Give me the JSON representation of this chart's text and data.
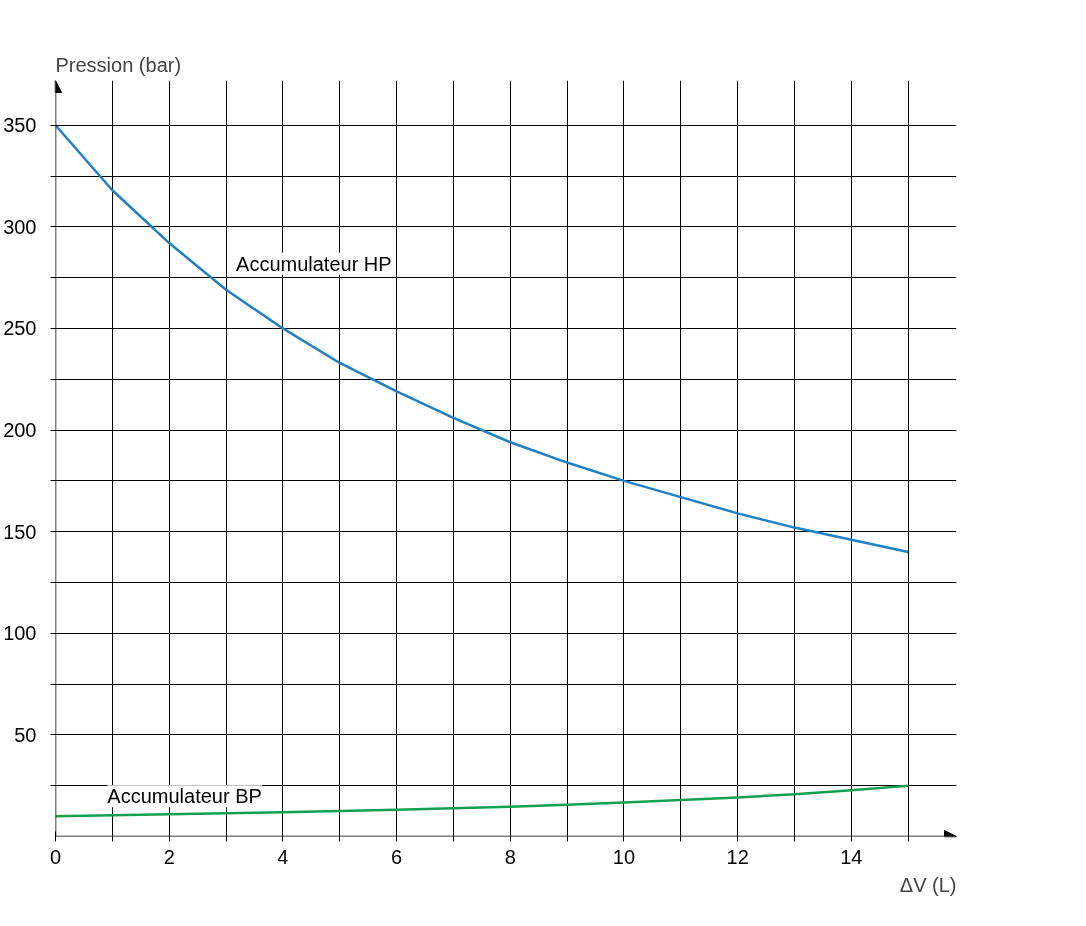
{
  "chart_data": {
    "type": "line",
    "xlabel": "ΔV (L)",
    "ylabel": "Pression (bar)",
    "x": [
      0,
      1,
      2,
      3,
      4,
      5,
      6,
      7,
      8,
      9,
      10,
      11,
      12,
      13,
      14,
      15
    ],
    "series": [
      {
        "name": "Accumulateur HP",
        "color": "#1f80c4",
        "values": [
          350,
          318,
          292,
          269,
          250,
          233,
          219,
          206,
          194,
          184,
          175,
          167,
          159,
          152,
          146,
          140
        ]
      },
      {
        "name": "Accumulateur BP",
        "color": "#14a050",
        "values": [
          10,
          10.4,
          10.9,
          11.4,
          11.9,
          12.5,
          13.2,
          13.9,
          14.7,
          15.6,
          16.7,
          17.9,
          19.2,
          20.8,
          22.7,
          25
        ]
      }
    ],
    "xlim": [
      0,
      15.85
    ],
    "ylim": [
      0,
      372
    ],
    "xticks": [
      0,
      {
        "value": 1,
        "label": null
      },
      2,
      {
        "value": 3,
        "label": null
      },
      4,
      {
        "value": 5,
        "label": null
      },
      6,
      {
        "value": 7,
        "label": null
      },
      8,
      {
        "value": 9,
        "label": null
      },
      10,
      {
        "value": 11,
        "label": null
      },
      12,
      {
        "value": 13,
        "label": null
      },
      14,
      {
        "value": 15,
        "label": null
      }
    ],
    "yticks": [
      {
        "value": 25,
        "label": null
      },
      50,
      {
        "value": 75,
        "label": null
      },
      100,
      {
        "value": 125,
        "label": null
      },
      150,
      {
        "value": 175,
        "label": null
      },
      200,
      {
        "value": 225,
        "label": null
      },
      250,
      {
        "value": 275,
        "label": null
      },
      300,
      {
        "value": 325,
        "label": null
      },
      350
    ],
    "grid": true,
    "marker": "none",
    "line_style": "solid"
  }
}
